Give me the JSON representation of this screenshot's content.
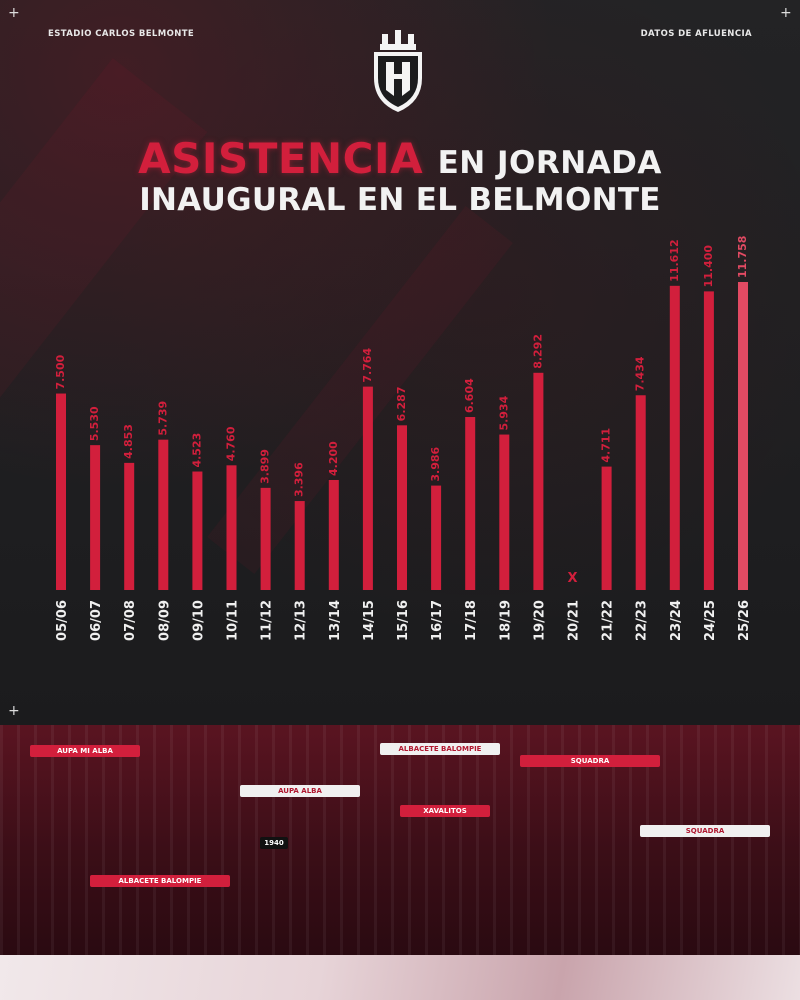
{
  "header": {
    "left_label": "ESTADIO CARLOS BELMONTE",
    "right_label": "DATOS DE AFLUENCIA",
    "corner_symbol": "+"
  },
  "logo": {
    "icon": "club-crest-icon"
  },
  "colors": {
    "accent": "#d21f3c",
    "accent_light": "#e24a63",
    "background": "#1c1c1e"
  },
  "chart_data": {
    "type": "bar",
    "title_parts": [
      "ASISTENCIA",
      "EN JORNADA",
      "INAUGURAL EN EL BELMONTE"
    ],
    "categories": [
      "05/06",
      "06/07",
      "07/08",
      "08/09",
      "09/10",
      "10/11",
      "11/12",
      "12/13",
      "13/14",
      "14/15",
      "15/16",
      "16/17",
      "17/18",
      "18/19",
      "19/20",
      "20/21",
      "21/22",
      "22/23",
      "23/24",
      "24/25",
      "25/26"
    ],
    "values": [
      7500,
      5530,
      4853,
      5739,
      4523,
      4760,
      3899,
      3396,
      4200,
      7764,
      6287,
      3986,
      6604,
      5934,
      8292,
      null,
      4711,
      7434,
      11612,
      11400,
      11758
    ],
    "labels": [
      "7.500",
      "5.530",
      "4.853",
      "5.739",
      "4.523",
      "4.760",
      "3.899",
      "3.396",
      "4.200",
      "7.764",
      "6.287",
      "3.986",
      "6.604",
      "5.934",
      "8.292",
      "X",
      "4.711",
      "7.434",
      "11.612",
      "11.400",
      "11.758"
    ],
    "highlight_last": true,
    "ylim": [
      0,
      11758
    ],
    "grid": false,
    "legend": "none"
  },
  "fan_scarves": [
    "AUPA MI ALBA",
    "ALBACETE BALOMPIE",
    "SQUADRA",
    "XAVALITOS",
    "AUPA ALBA",
    "1940",
    "ALBACETE BALOMPIE",
    "SQUADRA"
  ]
}
